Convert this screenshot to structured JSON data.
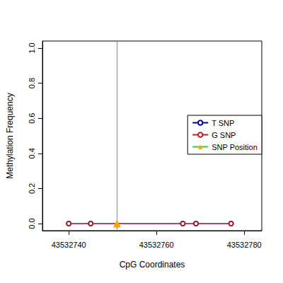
{
  "chart_data": {
    "type": "line",
    "x_label": "CpG Coordinates",
    "y_label": "Methylation Frequency",
    "x": [
      43532740,
      43532745,
      43532766,
      43532769,
      43532777
    ],
    "series": [
      {
        "name": "T SNP",
        "color": "#00008b",
        "marker": "circle",
        "values": [
          0,
          0,
          0,
          0,
          0
        ]
      },
      {
        "name": "G SNP",
        "color": "#b22222",
        "marker": "circle",
        "values": [
          0,
          0,
          0,
          0,
          0
        ]
      },
      {
        "name": "SNP Position",
        "type": "vline",
        "color": "#32cd32",
        "marker": "triangle",
        "x": [
          43532751
        ],
        "values": [
          0
        ]
      }
    ],
    "xlim": [
      43532734,
      43532784
    ],
    "xticks": [
      43532740,
      43532760,
      43532780
    ],
    "ylim": [
      -0.04,
      1.04
    ],
    "yticks": [
      {
        "value": 0,
        "label": "0.0"
      },
      {
        "value": 0.2,
        "label": "0.2"
      },
      {
        "value": 0.4,
        "label": "0.4"
      },
      {
        "value": 0.6,
        "label": "0.6"
      },
      {
        "value": 0.8,
        "label": "0.8"
      },
      {
        "value": 1,
        "label": "1.0"
      }
    ],
    "grid": false,
    "legend": "right"
  }
}
